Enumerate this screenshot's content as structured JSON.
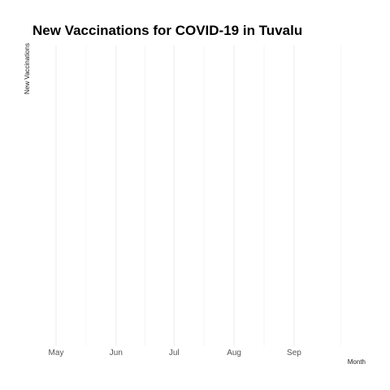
{
  "chart_data": {
    "type": "line",
    "title": "New Vaccinations for COVID-19 in Tuvalu",
    "xlabel": "Month",
    "ylabel": "New Vaccinations",
    "x_ticks": [
      "May",
      "Jun",
      "Jul",
      "Aug",
      "Sep"
    ],
    "x_tick_dates": [
      "2021-05-01",
      "2021-06-01",
      "2021-07-01",
      "2021-08-01",
      "2021-09-01"
    ],
    "xlim": [
      "2021-05-01",
      "2021-09-30"
    ],
    "series": [],
    "grid": true,
    "legend": "none"
  }
}
